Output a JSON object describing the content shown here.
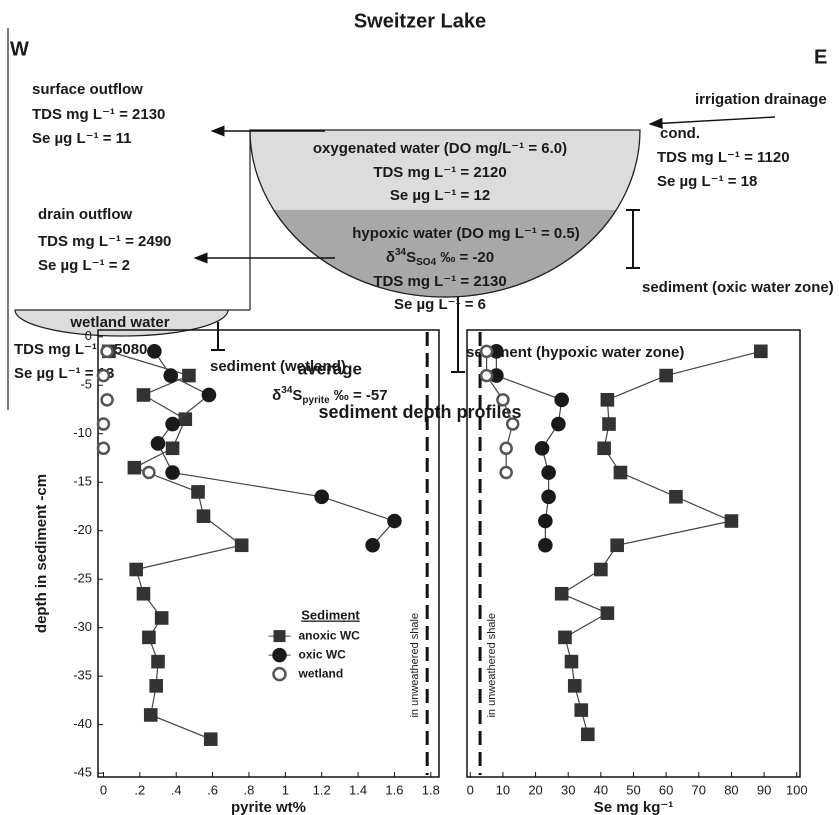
{
  "diagram": {
    "title": "Sweitzer Lake",
    "west": "W",
    "east": "E",
    "surface_outflow": {
      "label": "surface outflow",
      "tds": "TDS mg L⁻¹ = 2130",
      "se": "Se µg L⁻¹ = 11"
    },
    "drain_outflow": {
      "label": "drain outflow",
      "tds": "TDS mg L⁻¹  = 2490",
      "se": "Se µg L⁻¹ = 2"
    },
    "inflow": {
      "label": "irrigation drainage",
      "cond": "cond.",
      "tds": "TDS mg L⁻¹ = 1120",
      "se": "Se µg L⁻¹ = 18"
    },
    "oxygenated": {
      "label": "oxygenated water (DO mg/L⁻¹ = 6.0)",
      "tds": "TDS mg L⁻¹ = 2120",
      "se": "Se µg L⁻¹ = 12"
    },
    "hypoxic": {
      "label": "hypoxic water (DO mg L⁻¹ = 0.5)",
      "delta": "δ",
      "mass": "34",
      "element": "S",
      "sub": "SO4",
      "rest": " ‰ = -20",
      "tds": "TDS mg L⁻¹ = 2130",
      "se": "Se µg L⁻¹ = 6"
    },
    "wetland": {
      "label": "wetland water",
      "tds": "TDS mg L⁻¹  = 5080",
      "se": "Se µg L⁻¹ = 13"
    },
    "sediment_oxic": "sediment  (oxic water zone)",
    "sediment_hypoxic": "sediment  (hypoxic water zone)",
    "sediment_wetland": "sediment  (wetland)",
    "section_title": "sediment  depth profiles"
  },
  "chart_data": [
    {
      "type": "scatter",
      "xlabel": "pyrite wt%",
      "ylabel": "depth in sediment -cm",
      "xlim": [
        -0.03,
        1.845
      ],
      "ylim": [
        -45.4,
        0.7
      ],
      "xticks": [
        0,
        {
          "value": 0.2,
          "label": ".2"
        },
        {
          "value": 0.4,
          "label": ".4"
        },
        {
          "value": 0.6,
          "label": ".6"
        },
        {
          "value": 0.8,
          "label": ".8"
        },
        1,
        1.2,
        1.4,
        1.6,
        1.8
      ],
      "yticks": [
        0,
        -5,
        -10,
        -15,
        -20,
        -25,
        -30,
        -35,
        -40,
        -45
      ],
      "legend_title": "Sediment",
      "reference_line": {
        "x": 1.78,
        "label": "in unweathered shale"
      },
      "annotation": {
        "line1": "average",
        "delta": "δ",
        "mass": "34",
        "element": "S",
        "sub": "pyrite",
        "rest": " ‰ = -57"
      },
      "series": [
        {
          "name": "anoxic WC",
          "color": "#333333",
          "marker": "square",
          "filled": true,
          "connect": true,
          "x": [
            0.03,
            0.47,
            0.22,
            0.45,
            0.38,
            0.17,
            0.52,
            0.55,
            0.76,
            0.18,
            0.22,
            0.32,
            0.25,
            0.3,
            0.29,
            0.26,
            0.59
          ],
          "values": [
            -1.5,
            -4,
            -6,
            -8.5,
            -11.5,
            -13.5,
            -16,
            -18.5,
            -21.5,
            -24,
            -26.5,
            -29,
            -31,
            -33.5,
            -36,
            -39,
            -41.5
          ]
        },
        {
          "name": "oxic WC",
          "color": "#1a1a1a",
          "marker": "circle",
          "filled": true,
          "connect": true,
          "x": [
            0.28,
            0.37,
            0.58,
            0.38,
            0.3,
            0.38,
            1.2,
            1.6,
            1.48
          ],
          "values": [
            -1.5,
            -4,
            -6,
            -9,
            -11,
            -14,
            -16.5,
            -19,
            -21.5
          ]
        },
        {
          "name": "wetland",
          "color": "#555555",
          "marker": "circle",
          "filled": false,
          "connect": false,
          "x": [
            0.02,
            0,
            0.02,
            0,
            0,
            0.25
          ],
          "values": [
            -1.5,
            -4,
            -6.5,
            -9,
            -11.5,
            -14
          ]
        }
      ]
    },
    {
      "type": "scatter",
      "xlabel": "Se mg kg⁻¹",
      "xlim": [
        -1,
        101
      ],
      "ylim": [
        -45.4,
        0.7
      ],
      "xticks": [
        0,
        10,
        20,
        30,
        40,
        50,
        60,
        70,
        80,
        90,
        100
      ],
      "reference_line": {
        "x": 3,
        "label": "in unweathered shale"
      },
      "series": [
        {
          "color": "#333333",
          "marker": "square",
          "filled": true,
          "connect": true,
          "x": [
            89,
            60,
            42,
            42.5,
            41,
            46,
            63,
            80,
            45,
            40,
            28,
            42,
            29,
            31,
            32,
            34,
            36
          ],
          "values": [
            -1.5,
            -4,
            -6.5,
            -9,
            -11.5,
            -14,
            -16.5,
            -19,
            -21.5,
            -24,
            -26.5,
            -28.5,
            -31,
            -33.5,
            -36,
            -38.5,
            -41
          ]
        },
        {
          "color": "#1a1a1a",
          "marker": "circle",
          "filled": true,
          "connect": true,
          "x": [
            8,
            8,
            28,
            27,
            22,
            24,
            24,
            23,
            23
          ],
          "values": [
            -1.5,
            -4,
            -6.5,
            -9,
            -11.5,
            -14,
            -16.5,
            -19,
            -21.5
          ]
        },
        {
          "color": "#555555",
          "marker": "circle",
          "filled": false,
          "connect": true,
          "x": [
            5,
            5,
            10,
            13,
            11,
            11
          ],
          "values": [
            -1.5,
            -4,
            -6.5,
            -9,
            -11.5,
            -14
          ]
        }
      ]
    }
  ]
}
